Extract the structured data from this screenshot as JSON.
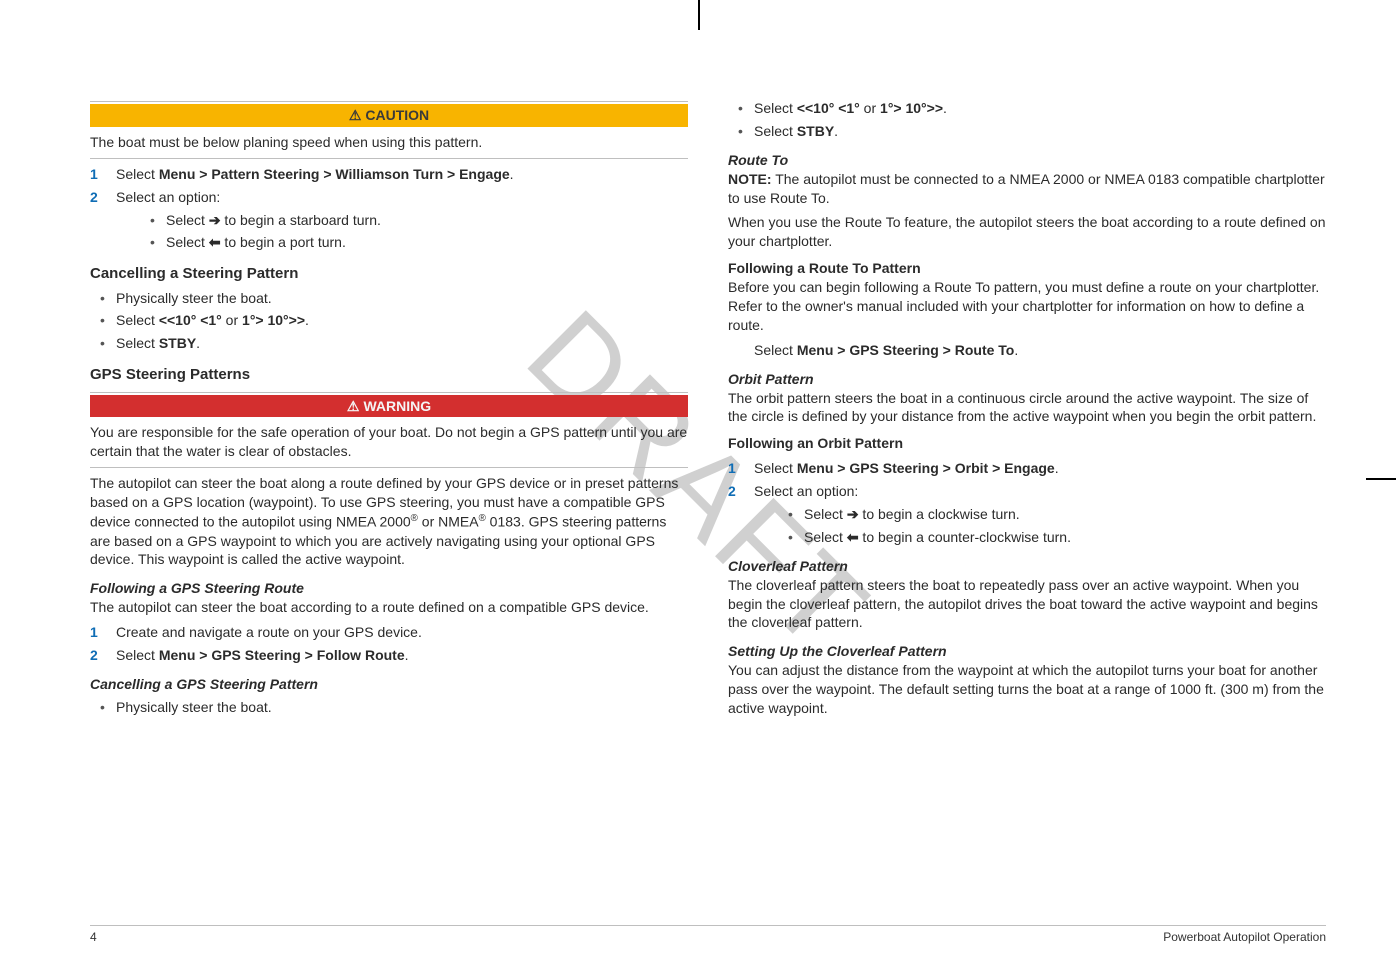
{
  "colors": {
    "caution_bg": "#f8b400",
    "caution_fg": "#3a3a3a",
    "warning_bg": "#d32f2f",
    "warning_fg": "#f5f5f5",
    "step_num": "#0f6db5",
    "body_text": "#2b2b2b",
    "rule": "#bfbfbf",
    "draft": "rgba(120,120,120,0.35)"
  },
  "watermark": "DRAFT",
  "caution_label": "CAUTION",
  "warning_label": "WARNING",
  "left": {
    "caution_text": "The boat must be below planing speed when using this pattern.",
    "step1_pre": "Select ",
    "step1_bold": "Menu > Pattern Steering > Williamson Turn > Engage",
    "step1_post": ".",
    "step2": "Select an option:",
    "opt1_pre": "Select ",
    "opt1_post": " to begin a starboard turn.",
    "opt2_pre": "Select ",
    "opt2_post": " to begin a port turn.",
    "h_cancel": "Cancelling a Steering Pattern",
    "cancel_b1": "Physically steer the boat.",
    "cancel_b2_pre": "Select ",
    "cancel_b2_bold1": "<<10° <1°",
    "cancel_b2_mid": " or ",
    "cancel_b2_bold2": "1°> 10°>>",
    "cancel_b2_post": ".",
    "cancel_b3_pre": "Select ",
    "cancel_b3_bold": "STBY",
    "cancel_b3_post": ".",
    "h_gps": "GPS Steering Patterns",
    "warning_text": "You are responsible for the safe operation of your boat. Do not begin a GPS pattern until you are certain that the water is clear of obstacles.",
    "gps_para_pre": "The autopilot can steer the boat along a route defined by your GPS device or in preset patterns based on a GPS location (waypoint). To use GPS steering, you must have a compatible GPS device connected to the autopilot using NMEA 2000",
    "gps_para_mid": " or NMEA",
    "gps_para_post": " 0183. GPS steering patterns are based on a GPS waypoint to which you are actively navigating using your optional GPS device. This waypoint is called the active waypoint.",
    "h_follow_route": "Following a GPS Steering Route",
    "follow_route_text": "The autopilot can steer the boat according to a route defined on a compatible GPS device.",
    "fr_step1": "Create and navigate a route on your GPS device.",
    "fr_step2_pre": "Select ",
    "fr_step2_bold": "Menu > GPS Steering > Follow Route",
    "fr_step2_post": ".",
    "h_cancel_gps": "Cancelling a GPS Steering Pattern",
    "cancel_gps_b1": "Physically steer the boat."
  },
  "right": {
    "b1_pre": "Select ",
    "b1_bold1": "<<10° <1°",
    "b1_mid": " or ",
    "b1_bold2": "1°> 10°>>",
    "b1_post": ".",
    "b2_pre": "Select ",
    "b2_bold": "STBY",
    "b2_post": ".",
    "h_route_to": "Route To",
    "note_label": "NOTE:",
    "note_text": " The autopilot must be connected to a NMEA 2000 or NMEA 0183 compatible chartplotter to use Route To.",
    "route_to_para": "When you use the Route To feature, the autopilot steers the boat according to a route defined on your chartplotter.",
    "h_follow_rt": "Following a Route To Pattern",
    "follow_rt_text": "Before you can begin following a Route To pattern, you must define a route on your chartplotter. Refer to the owner's manual included with your chartplotter for information on how to define a route.",
    "rt_step_pre": "Select ",
    "rt_step_bold": "Menu > GPS Steering > Route To",
    "rt_step_post": ".",
    "h_orbit": "Orbit Pattern",
    "orbit_text": "The orbit pattern steers the boat in a continuous circle around the active waypoint. The size of the circle is defined by your distance from the active waypoint when you begin the orbit pattern.",
    "h_follow_orbit": "Following an Orbit Pattern",
    "fo_step1_pre": "Select ",
    "fo_step1_bold": "Menu > GPS Steering > Orbit > Engage",
    "fo_step1_post": ".",
    "fo_step2": "Select an option:",
    "fo_opt1_pre": "Select ",
    "fo_opt1_post": " to begin a clockwise turn.",
    "fo_opt2_pre": "Select ",
    "fo_opt2_post": " to begin a counter-clockwise turn.",
    "h_clover": "Cloverleaf Pattern",
    "clover_text": "The cloverleaf pattern steers the boat to repeatedly pass over an active waypoint. When you begin the cloverleaf pattern, the autopilot drives the boat toward the active waypoint and begins the cloverleaf pattern.",
    "h_set_clover": "Setting Up the Cloverleaf Pattern",
    "set_clover_text": "You can adjust the distance from the waypoint at which the autopilot turns your boat for another pass over the waypoint. The default setting turns the boat at a range of 1000 ft. (300 m) from the active waypoint."
  },
  "footer": {
    "page": "4",
    "title": "Powerboat Autopilot Operation"
  }
}
